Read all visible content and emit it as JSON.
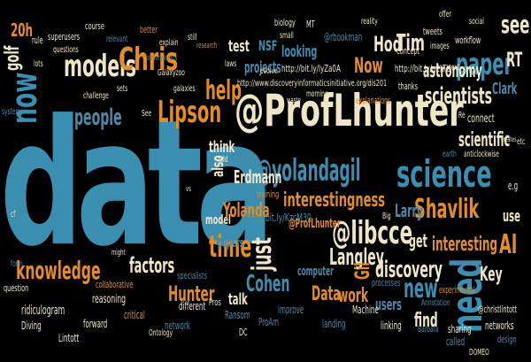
{
  "palette": {
    "background": "#000000",
    "teal": "#3a8fb0",
    "cream": "#efe6c6",
    "orange": "#e58d1f",
    "rust": "#c85a23",
    "slate": "#4e88a8",
    "white": "#ffffff"
  },
  "words": [
    {
      "t": "data",
      "c": "teal"
    },
    {
      "t": "@ProfLhunter",
      "c": "cream"
    },
    {
      "t": "science",
      "c": "teal"
    },
    {
      "t": "models",
      "c": "cream"
    },
    {
      "t": "Chris",
      "c": "orange"
    },
    {
      "t": "paper",
      "c": "teal"
    },
    {
      "t": "@yolandagil",
      "c": "teal"
    },
    {
      "t": "@libcce",
      "c": "cream"
    },
    {
      "t": "knowledge",
      "c": "orange"
    },
    {
      "t": "Lipson",
      "c": "orange"
    },
    {
      "t": "now",
      "c": "teal"
    },
    {
      "t": "need",
      "c": "teal"
    },
    {
      "t": "interestingness",
      "c": "orange"
    },
    {
      "t": "Shavlik",
      "c": "orange"
    },
    {
      "t": "scientists",
      "c": "cream"
    },
    {
      "t": "time",
      "c": "orange"
    },
    {
      "t": "discovery",
      "c": "cream"
    },
    {
      "t": "Langley",
      "c": "cream"
    },
    {
      "t": "scientific",
      "c": "cream"
    },
    {
      "t": "help",
      "c": "orange"
    },
    {
      "t": "people",
      "c": "slate"
    },
    {
      "t": "Now",
      "c": "orange"
    },
    {
      "t": "interesting",
      "c": "orange"
    },
    {
      "t": "factors",
      "c": "cream"
    },
    {
      "t": "Hunter",
      "c": "orange"
    },
    {
      "t": "Cohen",
      "c": "teal"
    },
    {
      "t": "Data",
      "c": "orange"
    },
    {
      "t": "work",
      "c": "orange"
    },
    {
      "t": "new",
      "c": "teal"
    },
    {
      "t": "just",
      "c": "cream"
    },
    {
      "t": "Gil",
      "c": "orange"
    },
    {
      "t": "Yolanda",
      "c": "orange"
    },
    {
      "t": "Erdmann",
      "c": "cream"
    },
    {
      "t": "Larry",
      "c": "slate"
    },
    {
      "t": "AI",
      "c": "orange"
    },
    {
      "t": "Hod",
      "c": "cream"
    },
    {
      "t": "Tim",
      "c": "cream"
    },
    {
      "t": "see",
      "c": "cream"
    },
    {
      "t": "RT",
      "c": "cream"
    },
    {
      "t": "astronomy",
      "c": "cream"
    },
    {
      "t": "Key",
      "c": "cream"
    },
    {
      "t": "get",
      "c": "cream"
    },
    {
      "t": "find",
      "c": "cream"
    },
    {
      "t": "talk",
      "c": "cream"
    },
    {
      "t": "think",
      "c": "cream"
    },
    {
      "t": "also",
      "c": "cream"
    },
    {
      "t": "golf",
      "c": "cream"
    },
    {
      "t": "20h",
      "c": "orange"
    },
    {
      "t": "test",
      "c": "cream"
    },
    {
      "t": "NSF",
      "c": "teal"
    },
    {
      "t": "looking",
      "c": "teal"
    },
    {
      "t": "Clark",
      "c": "slate"
    },
    {
      "t": "users",
      "c": "slate"
    },
    {
      "t": "use",
      "c": "cream"
    },
    {
      "t": "projects",
      "c": "slate"
    },
    {
      "t": "@ProfLhunter",
      "c": "orange"
    },
    {
      "t": "http://bit.ly/KzcM30",
      "c": "teal"
    },
    {
      "t": "http://bit.ly/lyZa0A",
      "c": "cream"
    },
    {
      "t": "http://bit.ly/g2LTU",
      "c": "cream"
    },
    {
      "t": "http://www.discoveryinformaticsinitiative.org/dis201",
      "c": "cream"
    },
    {
      "t": "@rbookman",
      "c": "slate"
    },
    {
      "t": "@christlintott",
      "c": "cream"
    },
    {
      "t": "model",
      "c": "cream"
    },
    {
      "t": "papers",
      "c": "slate"
    },
    {
      "t": "computer",
      "c": "slate"
    },
    {
      "t": "training",
      "c": "orange"
    },
    {
      "t": "specialists",
      "c": "slate"
    },
    {
      "t": "collaborative",
      "c": "orange"
    },
    {
      "t": "reasoning",
      "c": "cream"
    },
    {
      "t": "ridiculogram",
      "c": "cream"
    },
    {
      "t": "Diving",
      "c": "cream"
    },
    {
      "t": "forward",
      "c": "cream"
    },
    {
      "t": "Lintott",
      "c": "cream"
    },
    {
      "t": "question",
      "c": "cream"
    },
    {
      "t": "critical",
      "c": "orange"
    },
    {
      "t": "network",
      "c": "teal"
    },
    {
      "t": "different",
      "c": "cream"
    },
    {
      "t": "Ransom",
      "c": "slate"
    },
    {
      "t": "ProAm",
      "c": "slate"
    },
    {
      "t": "improve",
      "c": "slate"
    },
    {
      "t": "landing",
      "c": "slate"
    },
    {
      "t": "Machine",
      "c": "cream"
    },
    {
      "t": "linking",
      "c": "cream"
    },
    {
      "t": "sharing",
      "c": "cream"
    },
    {
      "t": "called",
      "c": "slate"
    },
    {
      "t": "DOMEO",
      "c": "cream"
    },
    {
      "t": "design",
      "c": "slate"
    },
    {
      "t": "networks",
      "c": "cream"
    },
    {
      "t": "experimental",
      "c": "orange"
    },
    {
      "t": "processes",
      "c": "slate"
    },
    {
      "t": "Pros",
      "c": "cream"
    },
    {
      "t": "DC",
      "c": "cream"
    },
    {
      "t": "Ontology",
      "c": "cream"
    },
    {
      "t": "Annotation",
      "c": "slate"
    },
    {
      "t": "Barbara",
      "c": "slate"
    },
    {
      "t": "connect",
      "c": "cream"
    },
    {
      "t": "anticlockwise",
      "c": "cream"
    },
    {
      "t": "earth",
      "c": "slate"
    },
    {
      "t": "e.g",
      "c": "cream"
    },
    {
      "t": "etc",
      "c": "cream"
    },
    {
      "t": "creates",
      "c": "cream"
    },
    {
      "t": "explanations",
      "c": "orange"
    },
    {
      "t": "thanks",
      "c": "cream"
    },
    {
      "t": "tweets",
      "c": "cream"
    },
    {
      "t": "images",
      "c": "cream"
    },
    {
      "t": "concept",
      "c": "cream"
    },
    {
      "t": "workflow",
      "c": "cream"
    },
    {
      "t": "social",
      "c": "cream"
    },
    {
      "t": "next",
      "c": "cream"
    },
    {
      "t": "offer",
      "c": "cream"
    },
    {
      "t": "reality",
      "c": "cream"
    },
    {
      "t": "biology",
      "c": "cream"
    },
    {
      "t": "MT",
      "c": "cream"
    },
    {
      "t": "small",
      "c": "cream"
    },
    {
      "t": "evolve",
      "c": "cream"
    },
    {
      "t": "laws",
      "c": "cream"
    },
    {
      "t": "still",
      "c": "cream"
    },
    {
      "t": "research",
      "c": "orange"
    },
    {
      "t": "explain",
      "c": "cream"
    },
    {
      "t": "better",
      "c": "orange"
    },
    {
      "t": "relevant",
      "c": "slate"
    },
    {
      "t": "course",
      "c": "cream"
    },
    {
      "t": "superusers",
      "c": "cream"
    },
    {
      "t": "rule",
      "c": "cream"
    },
    {
      "t": "questions",
      "c": "cream"
    },
    {
      "t": "lots",
      "c": "cream"
    },
    {
      "t": "observations",
      "c": "slate"
    },
    {
      "t": "Galaxyzoo",
      "c": "cream"
    },
    {
      "t": "galaxies",
      "c": "cream"
    },
    {
      "t": "challenge",
      "c": "cream"
    },
    {
      "t": "sets",
      "c": "cream"
    },
    {
      "t": "See",
      "c": "cream"
    },
    {
      "t": "systems",
      "c": "slate"
    },
    {
      "t": "morning",
      "c": "cream"
    },
    {
      "t": "waste",
      "c": "cream"
    },
    {
      "t": "methods",
      "c": "slate"
    },
    {
      "t": "Add",
      "c": "cream"
    },
    {
      "t": "might",
      "c": "cream"
    },
    {
      "t": "cf",
      "c": "cream"
    },
    {
      "t": "form",
      "c": "slate"
    },
    {
      "t": "Re",
      "c": "cream"
    },
    {
      "t": "Big",
      "c": "cream"
    },
    {
      "t": "vs",
      "c": "cream"
    }
  ]
}
